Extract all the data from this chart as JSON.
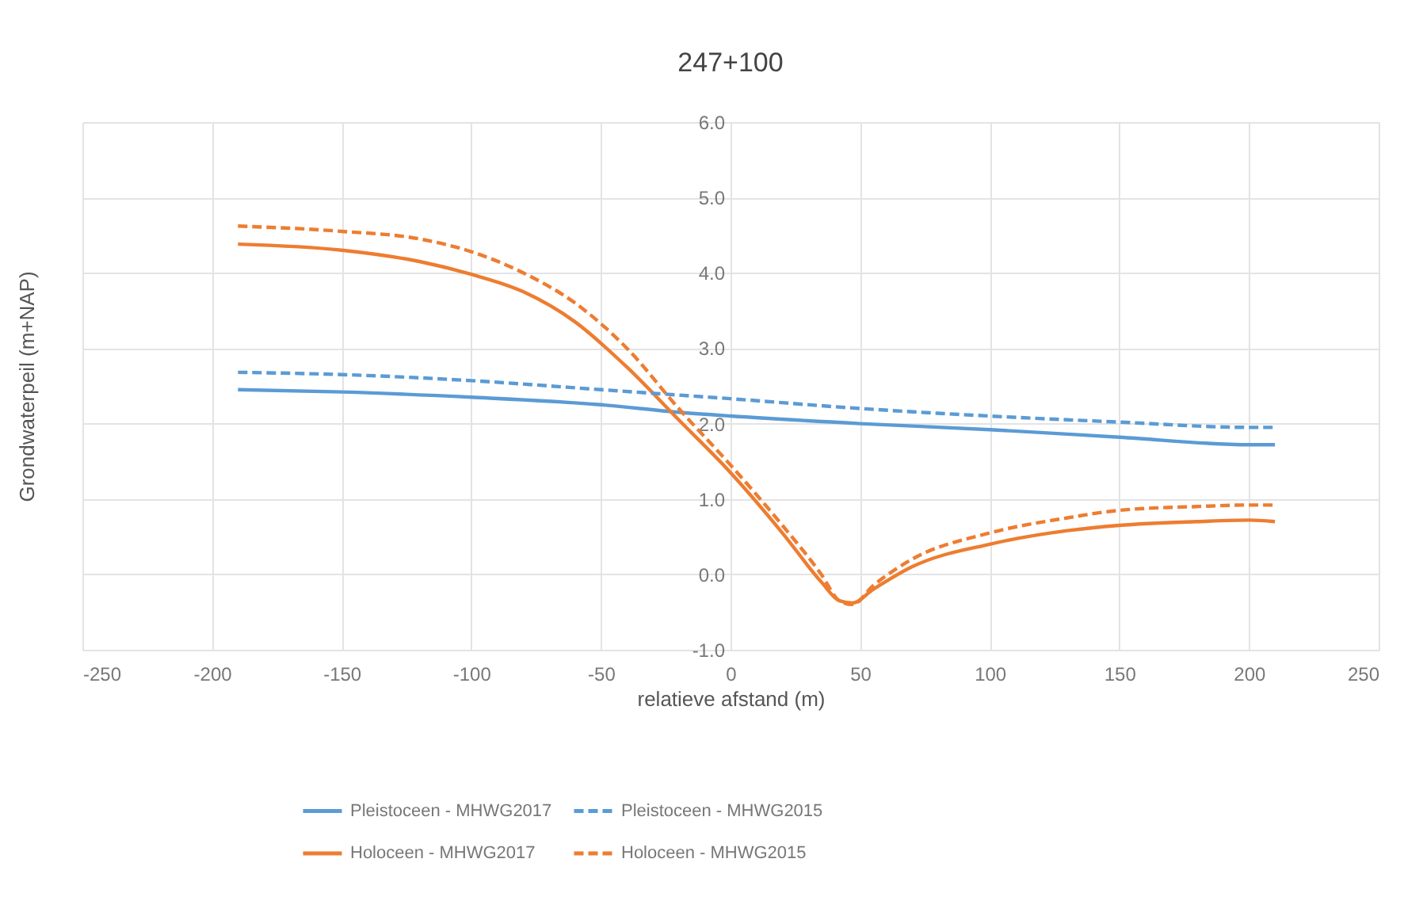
{
  "chart_data": {
    "type": "line",
    "title": "247+100",
    "xlabel": "relatieve afstand (m)",
    "ylabel": "Grondwaterpeil (m+NAP)",
    "xlim": [
      -250,
      250
    ],
    "xticks": [
      -250,
      -200,
      -150,
      -100,
      -50,
      0,
      50,
      100,
      150,
      200,
      250
    ],
    "ylim": [
      -1,
      6
    ],
    "yticks": [
      {
        "value": -1,
        "label": "-1.0"
      },
      {
        "value": 0,
        "label": "0.0"
      },
      {
        "value": 1,
        "label": "1.0"
      },
      {
        "value": 2,
        "label": "2.0"
      },
      {
        "value": 3,
        "label": "3.0"
      },
      {
        "value": 4,
        "label": "4.0"
      },
      {
        "value": 5,
        "label": "5.0"
      },
      {
        "value": 6,
        "label": "6.0"
      }
    ],
    "grid": true,
    "legend": "bottom",
    "series": [
      {
        "name": "Pleistoceen - MHWG2017",
        "color": "#5b9bd5",
        "line_style": "solid",
        "x": [
          -190,
          -150,
          -100,
          -50,
          -20,
          0,
          50,
          100,
          150,
          200,
          210
        ],
        "values": [
          2.45,
          2.42,
          2.35,
          2.25,
          2.15,
          2.1,
          2.0,
          1.92,
          1.82,
          1.72,
          1.72
        ]
      },
      {
        "name": "Holoceen - MHWG2017",
        "color": "#ed7d31",
        "line_style": "solid",
        "x": [
          -190,
          -150,
          -120,
          -100,
          -80,
          -60,
          -40,
          -20,
          0,
          20,
          35,
          42,
          47,
          55,
          70,
          100,
          130,
          150,
          180,
          200,
          210
        ],
        "values": [
          4.38,
          4.3,
          4.15,
          3.98,
          3.75,
          3.35,
          2.75,
          2.05,
          1.35,
          0.55,
          -0.1,
          -0.35,
          -0.38,
          -0.2,
          0.1,
          0.4,
          0.58,
          0.65,
          0.7,
          0.72,
          0.7
        ]
      },
      {
        "name": "Pleistoceen - MHWG2015",
        "color": "#5b9bd5",
        "line_style": "dashed",
        "x": [
          -190,
          -150,
          -100,
          -50,
          0,
          50,
          100,
          150,
          200,
          210
        ],
        "values": [
          2.68,
          2.65,
          2.57,
          2.45,
          2.33,
          2.2,
          2.1,
          2.02,
          1.95,
          1.95
        ]
      },
      {
        "name": "Holoceen - MHWG2015",
        "color": "#ed7d31",
        "line_style": "dashed",
        "x": [
          -190,
          -150,
          -120,
          -100,
          -80,
          -60,
          -40,
          -20,
          0,
          20,
          35,
          42,
          47,
          55,
          70,
          100,
          130,
          150,
          180,
          200,
          210
        ],
        "values": [
          4.62,
          4.55,
          4.45,
          4.28,
          4.0,
          3.6,
          3.0,
          2.2,
          1.45,
          0.65,
          0.0,
          -0.35,
          -0.4,
          -0.15,
          0.2,
          0.55,
          0.75,
          0.85,
          0.9,
          0.92,
          0.92
        ]
      }
    ]
  }
}
